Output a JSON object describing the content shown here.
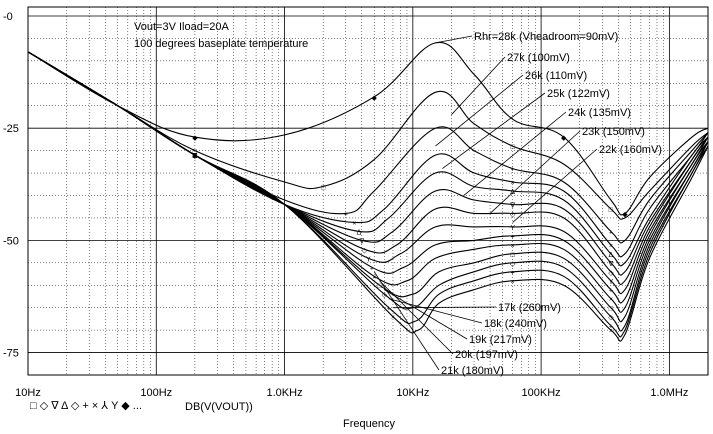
{
  "chart_data": {
    "type": "line",
    "title": "",
    "xlabel": "Frequency",
    "ylabel": "",
    "x_scale": "log",
    "xlim": [
      10,
      2000000
    ],
    "ylim": [
      -80,
      2
    ],
    "x_ticks": [
      10,
      100,
      1000,
      10000,
      100000,
      1000000
    ],
    "x_tick_labels": [
      "10Hz",
      "100Hz",
      "1.0KHz",
      "10KHz",
      "100KHz",
      "1.0MHz"
    ],
    "y_ticks": [
      0,
      -25,
      -50,
      -75
    ],
    "y_tick_labels": [
      "-0",
      "-25",
      "-50",
      "-75"
    ],
    "grid": true,
    "annotations": [
      "Vout=3V Iload=20A",
      "100 degrees baseplate temperature"
    ],
    "legend": {
      "marker_glyphs": "□ ◇ ∇ Δ ◇ + × ⅄ Y ◆ ...",
      "label": "DB(V(VOUT))"
    },
    "series": [
      {
        "name": "Rhr=28k (Vheadroom=90mV)",
        "x": [
          10,
          50,
          200,
          1000,
          5000,
          15000,
          30000,
          60000,
          150000,
          350000,
          450000,
          700000,
          1500000,
          2000000
        ],
        "y": [
          -8,
          -20,
          -27,
          -26.5,
          -18,
          -6,
          -13,
          -23,
          -27,
          -41,
          -44,
          -36,
          -27,
          -25
        ]
      },
      {
        "name": "27k (100mV)",
        "x": [
          10,
          50,
          200,
          1000,
          2000,
          5000,
          15000,
          30000,
          60000,
          150000,
          350000,
          450000,
          700000,
          1500000,
          2000000
        ],
        "y": [
          -8,
          -20,
          -30,
          -37,
          -38,
          -32,
          -17,
          -24,
          -29,
          -33,
          -43,
          -45,
          -39,
          -29,
          -26
        ]
      },
      {
        "name": "26k (110mV)",
        "x": [
          10,
          50,
          200,
          1000,
          3000,
          5000,
          15000,
          30000,
          60000,
          150000,
          350000,
          450000,
          700000,
          1500000,
          2000000
        ],
        "y": [
          -8,
          -20,
          -31,
          -41,
          -44,
          -39,
          -25,
          -30,
          -34,
          -37,
          -48,
          -50,
          -41,
          -30,
          -26
        ]
      },
      {
        "name": "25k (122mV)",
        "x": [
          10,
          50,
          200,
          1000,
          3500,
          6000,
          15000,
          30000,
          60000,
          150000,
          350000,
          450000,
          700000,
          1500000,
          2000000
        ],
        "y": [
          -8,
          -20,
          -31,
          -42,
          -46,
          -43,
          -31,
          -35,
          -37,
          -39,
          -51,
          -53,
          -43,
          -31,
          -26
        ]
      },
      {
        "name": "24k (135mV)",
        "x": [
          10,
          50,
          200,
          1000,
          3800,
          6500,
          15000,
          30000,
          60000,
          150000,
          350000,
          450000,
          700000,
          1500000,
          2000000
        ],
        "y": [
          -8,
          -20,
          -31,
          -42,
          -48,
          -45,
          -35,
          -38,
          -39,
          -41,
          -53,
          -55,
          -45,
          -31,
          -27
        ]
      },
      {
        "name": "23k (150mV)",
        "x": [
          10,
          50,
          200,
          1000,
          4000,
          7000,
          15000,
          30000,
          60000,
          150000,
          350000,
          450000,
          700000,
          1500000,
          2000000
        ],
        "y": [
          -8,
          -20,
          -31,
          -42,
          -50,
          -48,
          -39,
          -41,
          -42,
          -43,
          -55,
          -57,
          -46,
          -32,
          -27
        ]
      },
      {
        "name": "22k (160mV)",
        "x": [
          10,
          50,
          200,
          1000,
          4200,
          7500,
          15000,
          30000,
          60000,
          150000,
          350000,
          450000,
          700000,
          1500000,
          2000000
        ],
        "y": [
          -8,
          -20,
          -31,
          -42,
          -52,
          -51,
          -43,
          -44,
          -44,
          -45,
          -57,
          -59,
          -47,
          -32,
          -27
        ]
      },
      {
        "name": "21k (180mV)",
        "x": [
          10,
          50,
          200,
          1000,
          4500,
          8000,
          15000,
          30000,
          60000,
          150000,
          350000,
          450000,
          700000,
          1500000,
          2000000
        ],
        "y": [
          -8,
          -20,
          -31,
          -42,
          -54,
          -53,
          -47,
          -47,
          -47,
          -48,
          -59,
          -61,
          -48,
          -33,
          -27
        ]
      },
      {
        "name": "20k (197mV)",
        "x": [
          10,
          50,
          200,
          1000,
          4800,
          8500,
          15000,
          30000,
          60000,
          150000,
          350000,
          450000,
          700000,
          1500000,
          2000000
        ],
        "y": [
          -8,
          -20,
          -31,
          -42,
          -56,
          -56,
          -51,
          -50,
          -49,
          -50,
          -61,
          -63,
          -49,
          -33,
          -28
        ]
      },
      {
        "name": "19k (217mV)",
        "x": [
          10,
          50,
          200,
          1000,
          5000,
          9000,
          15000,
          30000,
          60000,
          150000,
          350000,
          450000,
          700000,
          1500000,
          2000000
        ],
        "y": [
          -8,
          -20,
          -31,
          -42,
          -58,
          -59,
          -54,
          -52,
          -51,
          -52,
          -63,
          -65,
          -50,
          -34,
          -28
        ]
      },
      {
        "name": "18k (240mV)",
        "x": [
          10,
          50,
          200,
          1000,
          5500,
          10000,
          16000,
          30000,
          60000,
          150000,
          350000,
          450000,
          700000,
          1500000,
          2000000
        ],
        "y": [
          -8,
          -20,
          -31,
          -42,
          -60,
          -62,
          -57,
          -55,
          -53,
          -54,
          -65,
          -67,
          -51,
          -34,
          -28
        ]
      },
      {
        "name": "17k (260mV)",
        "x": [
          10,
          50,
          200,
          1000,
          6000,
          10000,
          16000,
          30000,
          60000,
          150000,
          350000,
          450000,
          700000,
          1500000,
          2000000
        ],
        "y": [
          -8,
          -20,
          -31,
          -42,
          -62,
          -65,
          -60,
          -57,
          -55,
          -56,
          -67,
          -69,
          -52,
          -35,
          -28
        ]
      },
      {
        "name": "",
        "x": [
          10,
          50,
          200,
          1000,
          6500,
          10500,
          16000,
          30000,
          60000,
          150000,
          350000,
          450000,
          700000,
          1500000,
          2000000
        ],
        "y": [
          -8,
          -20,
          -31,
          -42,
          -65,
          -68,
          -62,
          -59,
          -57,
          -58,
          -69,
          -70,
          -53,
          -35,
          -29
        ]
      },
      {
        "name": "",
        "x": [
          10,
          50,
          200,
          1000,
          7000,
          11000,
          16000,
          30000,
          60000,
          150000,
          350000,
          450000,
          700000,
          1500000,
          2000000
        ],
        "y": [
          -8,
          -20,
          -31,
          -42,
          -67,
          -70,
          -64,
          -61,
          -59,
          -60,
          -70,
          -71,
          -54,
          -36,
          -29
        ]
      }
    ],
    "labels_top": [
      {
        "text": "Rhr=28k (Vheadroom=90mV)",
        "series": 0,
        "x": 15000,
        "y": -6
      },
      {
        "text": "27k (100mV)",
        "series": 1,
        "x": 20000,
        "y": -22
      },
      {
        "text": "26k (110mV)",
        "series": 2,
        "x": 15000,
        "y": -29
      },
      {
        "text": "25k (122mV)",
        "series": 3,
        "x": 17000,
        "y": -34
      },
      {
        "text": "24k (135mV)",
        "series": 4,
        "x": 25000,
        "y": -40
      },
      {
        "text": "23k (150mV)",
        "series": 5,
        "x": 40000,
        "y": -44
      },
      {
        "text": "22k (160mV)",
        "series": 6,
        "x": 60000,
        "y": -46
      }
    ],
    "labels_bottom": [
      {
        "text": "17k (260mV)",
        "series": 11,
        "x": 7000,
        "y": -65
      },
      {
        "text": "18k (240mV)",
        "series": 10,
        "x": 6500,
        "y": -63
      },
      {
        "text": "19k (217mV)",
        "series": 9,
        "x": 6000,
        "y": -61
      },
      {
        "text": "20k (197mV)",
        "series": 8,
        "x": 5500,
        "y": -59
      },
      {
        "text": "21k (180mV)",
        "series": 7,
        "x": 5000,
        "y": -57
      }
    ]
  }
}
